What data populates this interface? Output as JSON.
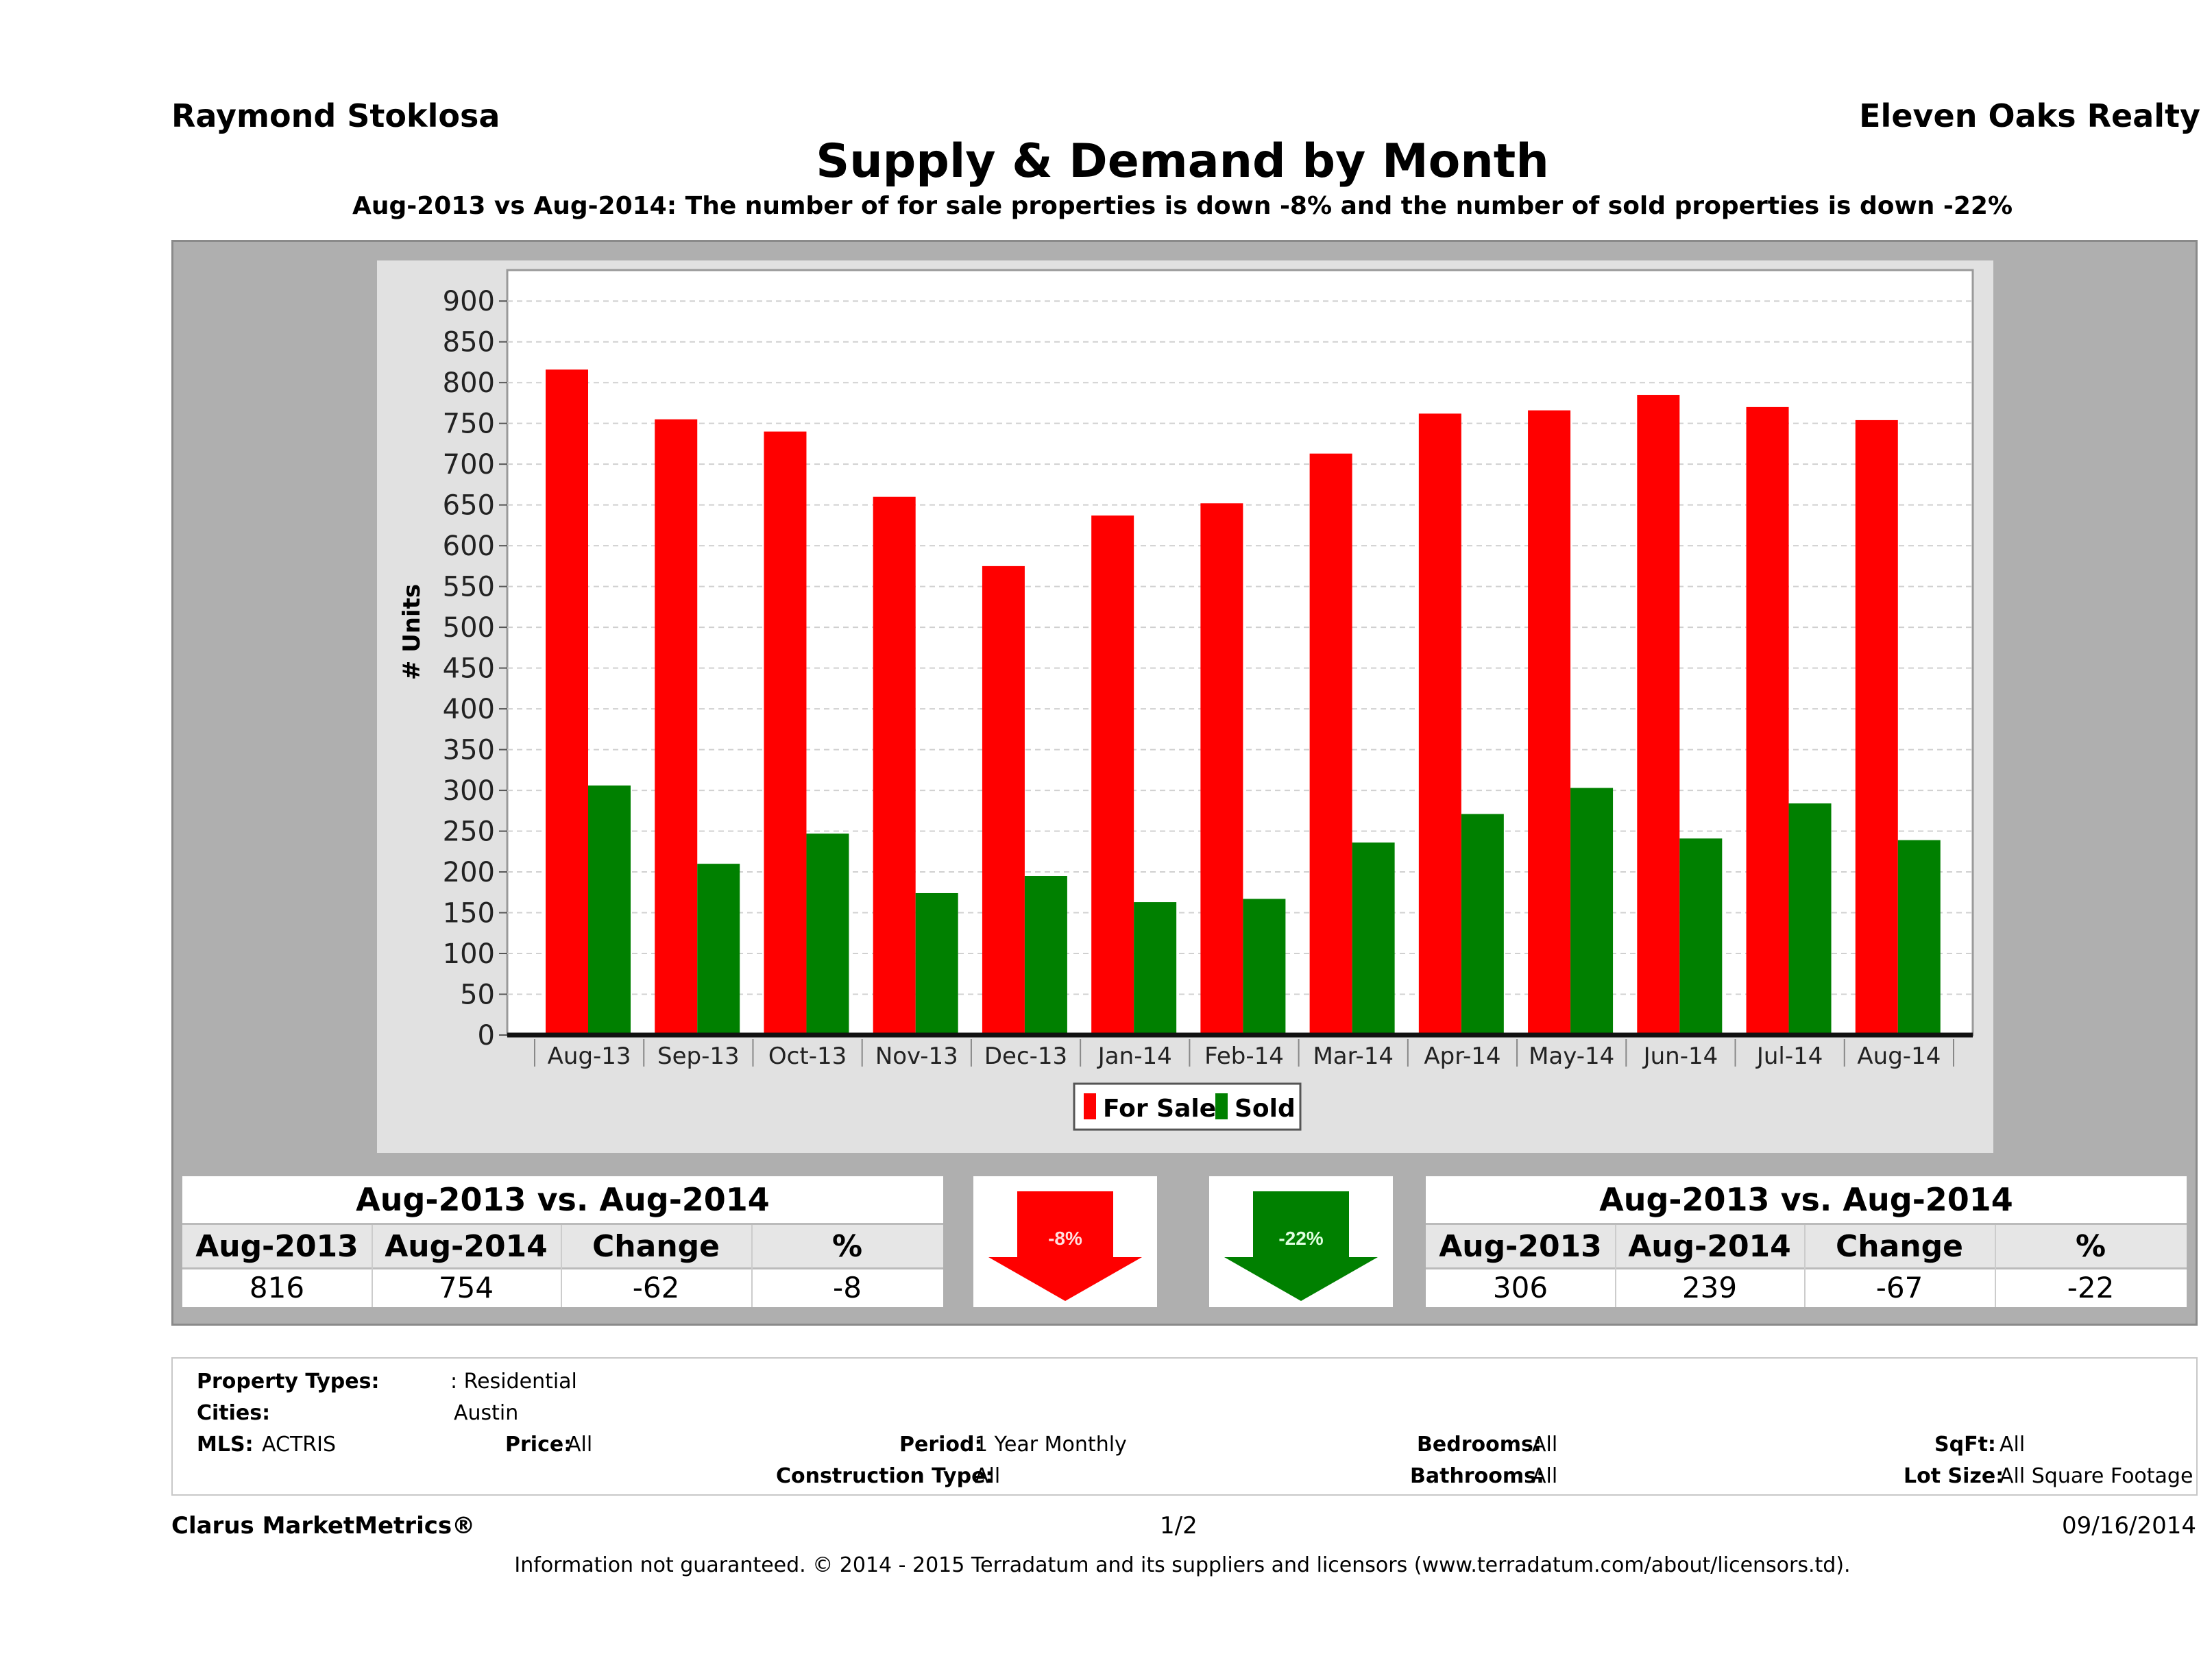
{
  "header": {
    "agent_name": "Raymond Stoklosa",
    "brokerage": "Eleven Oaks Realty",
    "title": "Supply & Demand by Month",
    "subtitle": "Aug-2013 vs Aug-2014: The number of for sale properties is down -8% and the number of sold properties is down -22%"
  },
  "chart_data": {
    "type": "bar",
    "ylabel": "# Units",
    "xlabel": "",
    "ylim": [
      0,
      900
    ],
    "ytick_step": 50,
    "grid": true,
    "legend_position": "bottom-center",
    "categories": [
      "Aug-13",
      "Sep-13",
      "Oct-13",
      "Nov-13",
      "Dec-13",
      "Jan-14",
      "Feb-14",
      "Mar-14",
      "Apr-14",
      "May-14",
      "Jun-14",
      "Jul-14",
      "Aug-14"
    ],
    "series": [
      {
        "name": "For Sale",
        "color": "#ff0000",
        "values": [
          816,
          755,
          740,
          660,
          575,
          637,
          652,
          713,
          762,
          766,
          785,
          770,
          754
        ]
      },
      {
        "name": "Sold",
        "color": "#008000",
        "values": [
          306,
          210,
          247,
          174,
          195,
          163,
          167,
          236,
          271,
          303,
          241,
          284,
          239
        ]
      }
    ]
  },
  "summary_left": {
    "title": "Aug-2013 vs. Aug-2014",
    "headers": [
      "Aug-2013",
      "Aug-2014",
      "Change",
      "%"
    ],
    "values": [
      "816",
      "754",
      "-62",
      "-8"
    ]
  },
  "summary_right": {
    "title": "Aug-2013 vs. Aug-2014",
    "headers": [
      "Aug-2013",
      "Aug-2014",
      "Change",
      "%"
    ],
    "values": [
      "306",
      "239",
      "-67",
      "-22"
    ]
  },
  "arrows": {
    "for_sale": {
      "label": "-8%",
      "color": "#ff0000"
    },
    "sold": {
      "label": "-22%",
      "color": "#008000"
    }
  },
  "info": {
    "property_types_label": "Property Types:",
    "property_types_value": ": Residential",
    "cities_label": "Cities:",
    "cities_value": "Austin",
    "mls_label": "MLS:",
    "mls_value": "ACTRIS",
    "price_label": "Price:",
    "price_value": "All",
    "period_label": "Period:",
    "period_value": "1 Year Monthly",
    "construction_label": "Construction Type:",
    "construction_value": "All",
    "bedrooms_label": "Bedrooms:",
    "bedrooms_value": "All",
    "bathrooms_label": "Bathrooms:",
    "bathrooms_value": "All",
    "sqft_label": "SqFt:",
    "sqft_value": "All",
    "lot_label": "Lot Size:",
    "lot_value": "All Square Footage"
  },
  "footer": {
    "brand": "Clarus MarketMetrics®",
    "page": "1/2",
    "date": "09/16/2014",
    "disclaimer": "Information not guaranteed. © 2014 - 2015 Terradatum and its suppliers and licensors (www.terradatum.com/about/licensors.td)."
  }
}
